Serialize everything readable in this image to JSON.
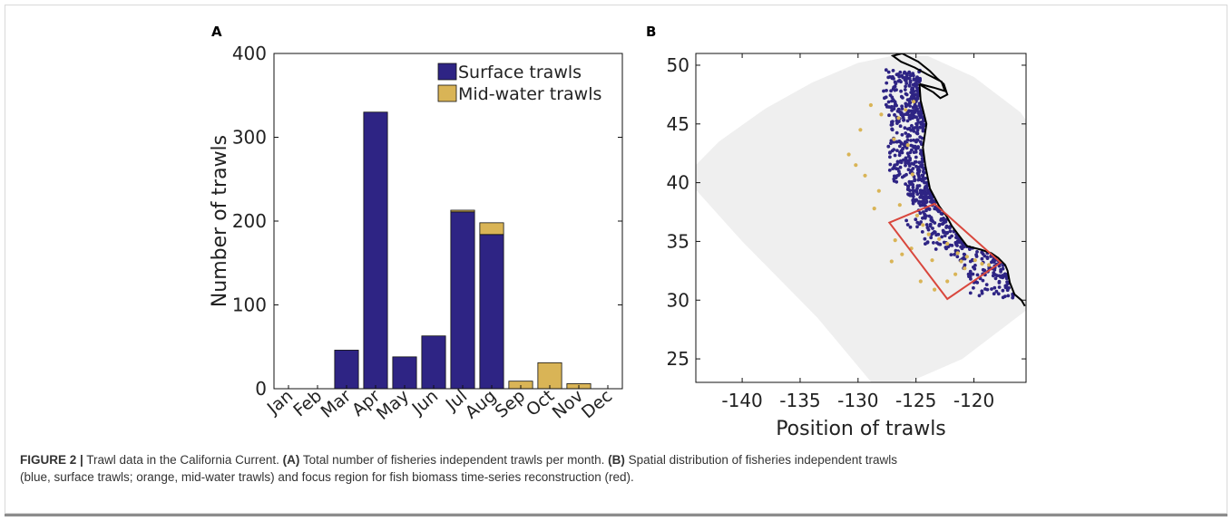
{
  "panel_a_label": "A",
  "panel_b_label": "B",
  "chart_data": [
    {
      "type": "bar",
      "stacked": true,
      "categories": [
        "Jan",
        "Feb",
        "Mar",
        "Apr",
        "May",
        "Jun",
        "Jul",
        "Aug",
        "Sep",
        "Oct",
        "Nov",
        "Dec"
      ],
      "series": [
        {
          "name": "Surface trawls",
          "color": "#2e2484",
          "values": [
            0,
            0,
            46,
            330,
            38,
            63,
            211,
            184,
            0,
            0,
            0,
            0
          ]
        },
        {
          "name": "Mid-water trawls",
          "color": "#d9b456",
          "values": [
            0,
            0,
            0,
            0,
            0,
            0,
            2,
            14,
            9,
            31,
            6,
            0
          ]
        }
      ],
      "ylabel": "Number of trawls",
      "xlabel": "",
      "ylim": [
        0,
        400
      ],
      "yticks": [
        0,
        100,
        200,
        300,
        400
      ],
      "legend": "top-right",
      "grid": false
    },
    {
      "type": "scatter",
      "xlabel": "Position of trawls",
      "ylabel": "",
      "xlim": [
        -144,
        -115.5
      ],
      "ylim": [
        23,
        51
      ],
      "xticks": [
        -140,
        -135,
        -130,
        -125,
        -120
      ],
      "yticks": [
        25,
        30,
        35,
        40,
        45,
        50
      ],
      "series_colors": {
        "surface": "#2e2484",
        "midwater": "#d9b456",
        "focus_region": "#d9473d",
        "coast": "#000000",
        "domain": "#efefef"
      },
      "focus_region": [
        [
          -127.3,
          36.6
        ],
        [
          -123.4,
          38.2
        ],
        [
          -117.7,
          33.2
        ],
        [
          -122.3,
          30.1
        ]
      ],
      "coastline": [
        [
          -124.7,
          48.4
        ],
        [
          -124.6,
          47.0
        ],
        [
          -124.1,
          45.0
        ],
        [
          -124.4,
          43.0
        ],
        [
          -124.2,
          41.5
        ],
        [
          -123.8,
          39.5
        ],
        [
          -123.0,
          38.0
        ],
        [
          -122.4,
          37.2
        ],
        [
          -121.9,
          36.3
        ],
        [
          -120.6,
          34.6
        ],
        [
          -119.4,
          34.3
        ],
        [
          -118.5,
          34.0
        ],
        [
          -117.9,
          33.6
        ],
        [
          -117.3,
          33.0
        ],
        [
          -117.1,
          32.5
        ],
        [
          -116.9,
          31.5
        ],
        [
          -116.5,
          30.5
        ],
        [
          -115.9,
          30.0
        ],
        [
          -115.6,
          29.5
        ]
      ],
      "puget_sound": [
        [
          -124.7,
          48.4
        ],
        [
          -123.5,
          48.1
        ],
        [
          -122.5,
          47.8
        ],
        [
          -122.8,
          48.6
        ],
        [
          -124.0,
          49.2
        ],
        [
          -125.1,
          49.8
        ],
        [
          -126.3,
          50.3
        ],
        [
          -127.0,
          50.8
        ],
        [
          -126.2,
          51.0
        ],
        [
          -124.8,
          50.3
        ],
        [
          -123.8,
          49.5
        ],
        [
          -123.2,
          48.9
        ],
        [
          -122.6,
          48.4
        ],
        [
          -122.3,
          47.5
        ],
        [
          -122.9,
          47.2
        ],
        [
          -123.5,
          47.7
        ],
        [
          -124.6,
          48.3
        ]
      ]
    }
  ],
  "caption": {
    "label": "FIGURE 2 |",
    "text_1": " Trawl data in the California Current. ",
    "a_ref": "(A)",
    "text_2": " Total number of fisheries independent trawls per month. ",
    "b_ref": "(B)",
    "text_3": " Spatial distribution of fisheries independent trawls",
    "text_4": "(blue, surface trawls; orange, mid-water trawls) and focus region for fish biomass time-series reconstruction (red)."
  }
}
